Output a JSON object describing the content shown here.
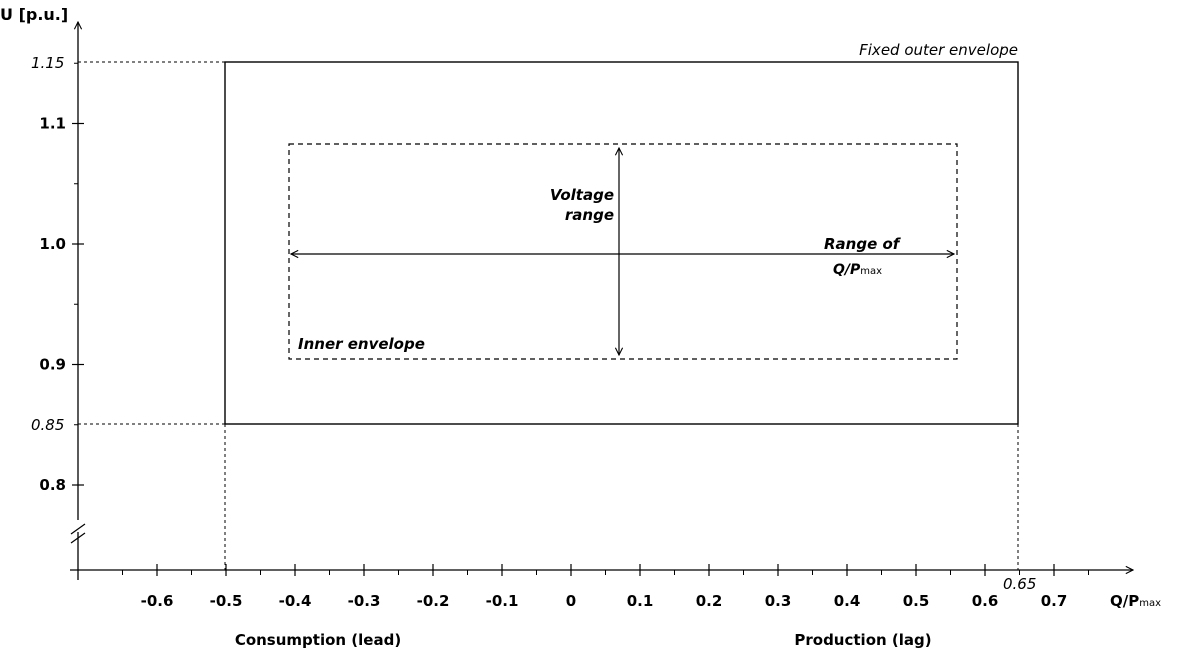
{
  "axes": {
    "y_label": "U [p.u.]",
    "x_label_main": "Q/P",
    "x_label_sub": "max",
    "x_ticks": [
      "-0.6",
      "-0.5",
      "-0.4",
      "-0.3",
      "-0.2",
      "-0.1",
      "0",
      "0.1",
      "0.2",
      "0.3",
      "0.4",
      "0.5",
      "0.6",
      "0.7"
    ],
    "y_ticks": [
      "1.1",
      "1.0",
      "0.9",
      "0.8"
    ],
    "x_range": [
      -0.7,
      0.8
    ],
    "y_range": [
      0.75,
      1.18
    ],
    "y_axis_break": true
  },
  "outer_envelope": {
    "label": "Fixed outer envelope",
    "u_max": 1.15,
    "u_min": 0.85,
    "q_min": -0.5,
    "q_max": 0.65,
    "u_max_label": "1.15",
    "u_min_label": "0.85",
    "q_max_label": "0.65",
    "line_style": "solid"
  },
  "inner_envelope": {
    "label": "Inner envelope",
    "u_max": 1.083,
    "u_min": 0.905,
    "q_min": -0.405,
    "q_max": 0.555,
    "line_style": "dashed"
  },
  "voltage_range": {
    "label_line1": "Voltage",
    "label_line2": "range",
    "q": 0.07
  },
  "q_range": {
    "label_line1": "Range of",
    "label_line2_main": "Q/P",
    "label_line2_sub": "max",
    "u": 0.992
  },
  "regions": {
    "left": "Consumption (lead)",
    "right": "Production (lag)"
  }
}
